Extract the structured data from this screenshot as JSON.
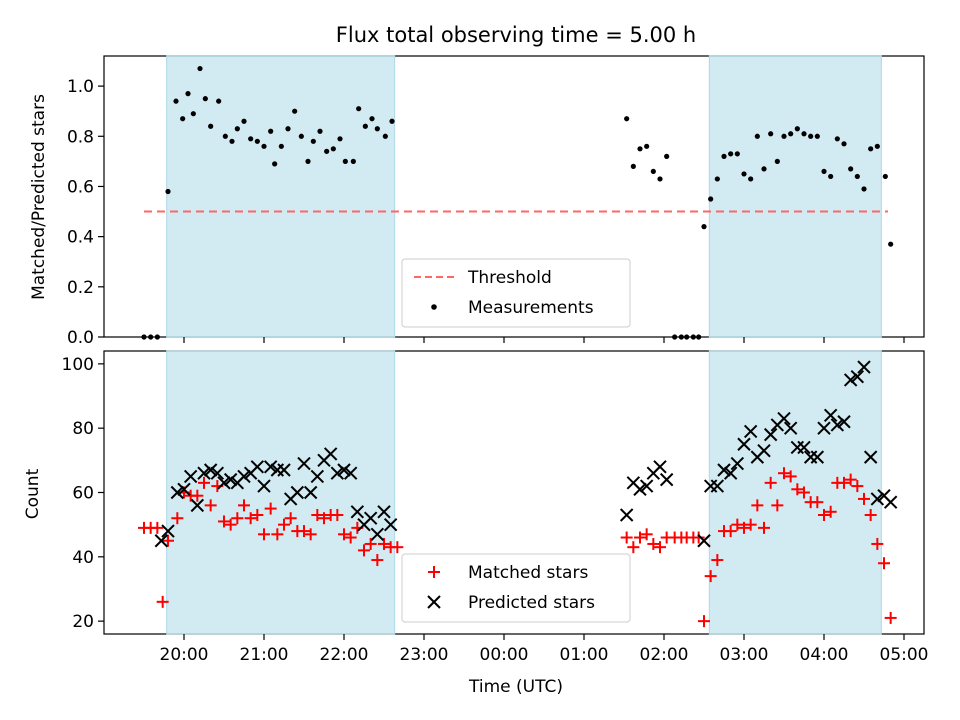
{
  "colors": {
    "band": "#add8e6",
    "threshold": "#ff6666",
    "matched": "#ff0000",
    "predicted": "#000000",
    "measurement": "#000000"
  },
  "chart_data": [
    {
      "type": "scatter",
      "title": "Flux total observing time = 5.00 h",
      "ylabel": "Matched/Predicted stars",
      "xlabel": "",
      "ylim": [
        0,
        1.12
      ],
      "yticks": [
        0.0,
        0.2,
        0.4,
        0.6,
        0.8,
        1.0
      ],
      "ytick_labels": [
        "0.0",
        "0.2",
        "0.4",
        "0.6",
        "0.8",
        "1.0"
      ],
      "grid": false,
      "legend_position": "lower center",
      "shaded_bands": [
        [
          "19:47",
          "22:38"
        ],
        [
          "02:34",
          "04:43"
        ]
      ],
      "threshold": {
        "name": "Threshold",
        "value": 0.5,
        "x_range": [
          "19:30",
          "04:48"
        ]
      },
      "series": [
        {
          "name": "Measurements",
          "marker": "dot",
          "points": [
            [
              "19:30",
              0.0
            ],
            [
              "19:35",
              0.0
            ],
            [
              "19:40",
              0.0
            ],
            [
              "19:48",
              0.58
            ],
            [
              "19:54",
              0.94
            ],
            [
              "19:59",
              0.87
            ],
            [
              "20:03",
              0.97
            ],
            [
              "20:07",
              0.89
            ],
            [
              "20:12",
              1.07
            ],
            [
              "20:16",
              0.95
            ],
            [
              "20:20",
              0.84
            ],
            [
              "20:26",
              0.94
            ],
            [
              "20:31",
              0.8
            ],
            [
              "20:36",
              0.78
            ],
            [
              "20:40",
              0.83
            ],
            [
              "20:45",
              0.86
            ],
            [
              "20:50",
              0.79
            ],
            [
              "20:55",
              0.78
            ],
            [
              "21:00",
              0.76
            ],
            [
              "21:05",
              0.82
            ],
            [
              "21:08",
              0.69
            ],
            [
              "21:13",
              0.76
            ],
            [
              "21:18",
              0.83
            ],
            [
              "21:23",
              0.9
            ],
            [
              "21:28",
              0.8
            ],
            [
              "21:33",
              0.7
            ],
            [
              "21:37",
              0.78
            ],
            [
              "21:42",
              0.82
            ],
            [
              "21:47",
              0.74
            ],
            [
              "21:52",
              0.75
            ],
            [
              "21:57",
              0.79
            ],
            [
              "22:01",
              0.7
            ],
            [
              "22:07",
              0.7
            ],
            [
              "22:11",
              0.91
            ],
            [
              "22:16",
              0.84
            ],
            [
              "22:21",
              0.87
            ],
            [
              "22:25",
              0.83
            ],
            [
              "22:31",
              0.8
            ],
            [
              "22:36",
              0.86
            ],
            [
              "01:32",
              0.87
            ],
            [
              "01:37",
              0.68
            ],
            [
              "01:42",
              0.75
            ],
            [
              "01:47",
              0.76
            ],
            [
              "01:52",
              0.66
            ],
            [
              "01:57",
              0.63
            ],
            [
              "02:02",
              0.72
            ],
            [
              "02:08",
              0.0
            ],
            [
              "02:13",
              0.0
            ],
            [
              "02:17",
              0.0
            ],
            [
              "02:22",
              0.0
            ],
            [
              "02:26",
              0.0
            ],
            [
              "02:30",
              0.44
            ],
            [
              "02:35",
              0.55
            ],
            [
              "02:40",
              0.63
            ],
            [
              "02:45",
              0.72
            ],
            [
              "02:50",
              0.73
            ],
            [
              "02:55",
              0.73
            ],
            [
              "03:00",
              0.65
            ],
            [
              "03:05",
              0.63
            ],
            [
              "03:10",
              0.8
            ],
            [
              "03:15",
              0.67
            ],
            [
              "03:20",
              0.81
            ],
            [
              "03:25",
              0.7
            ],
            [
              "03:30",
              0.8
            ],
            [
              "03:35",
              0.81
            ],
            [
              "03:40",
              0.83
            ],
            [
              "03:45",
              0.81
            ],
            [
              "03:50",
              0.8
            ],
            [
              "03:55",
              0.8
            ],
            [
              "04:00",
              0.66
            ],
            [
              "04:05",
              0.64
            ],
            [
              "04:10",
              0.79
            ],
            [
              "04:15",
              0.77
            ],
            [
              "04:20",
              0.67
            ],
            [
              "04:25",
              0.64
            ],
            [
              "04:30",
              0.59
            ],
            [
              "04:35",
              0.75
            ],
            [
              "04:40",
              0.76
            ],
            [
              "04:46",
              0.64
            ],
            [
              "04:50",
              0.37
            ]
          ]
        }
      ]
    },
    {
      "type": "scatter",
      "title": "",
      "xlabel": "Time (UTC)",
      "ylabel": "Count",
      "ylim": [
        16,
        104
      ],
      "yticks": [
        20,
        40,
        60,
        80,
        100
      ],
      "ytick_labels": [
        "20",
        "40",
        "60",
        "80",
        "100"
      ],
      "xticks": [
        "20:00",
        "21:00",
        "22:00",
        "23:00",
        "00:00",
        "01:00",
        "02:00",
        "03:00",
        "04:00",
        "05:00"
      ],
      "xlim": [
        "19:00",
        "05:15"
      ],
      "grid": false,
      "legend_position": "lower center",
      "shaded_bands": [
        [
          "19:47",
          "22:38"
        ],
        [
          "02:34",
          "04:43"
        ]
      ],
      "series": [
        {
          "name": "Matched stars",
          "marker": "plus",
          "points": [
            [
              "19:30",
              49
            ],
            [
              "19:35",
              49
            ],
            [
              "19:40",
              49
            ],
            [
              "19:44",
              26
            ],
            [
              "19:48",
              45
            ],
            [
              "19:55",
              52
            ],
            [
              "20:00",
              60
            ],
            [
              "20:05",
              59
            ],
            [
              "20:10",
              59
            ],
            [
              "20:15",
              63
            ],
            [
              "20:20",
              56
            ],
            [
              "20:25",
              62
            ],
            [
              "20:30",
              51
            ],
            [
              "20:35",
              50
            ],
            [
              "20:40",
              52
            ],
            [
              "20:45",
              56
            ],
            [
              "20:50",
              52
            ],
            [
              "20:55",
              53
            ],
            [
              "21:00",
              47
            ],
            [
              "21:05",
              55
            ],
            [
              "21:10",
              47
            ],
            [
              "21:15",
              50
            ],
            [
              "21:20",
              52
            ],
            [
              "21:25",
              48
            ],
            [
              "21:30",
              48
            ],
            [
              "21:35",
              47
            ],
            [
              "21:40",
              53
            ],
            [
              "21:45",
              52
            ],
            [
              "21:50",
              53
            ],
            [
              "21:55",
              53
            ],
            [
              "22:00",
              47
            ],
            [
              "22:05",
              46
            ],
            [
              "22:10",
              49
            ],
            [
              "22:15",
              42
            ],
            [
              "22:20",
              44
            ],
            [
              "22:25",
              39
            ],
            [
              "22:30",
              44
            ],
            [
              "22:35",
              43
            ],
            [
              "22:40",
              43
            ],
            [
              "01:32",
              46
            ],
            [
              "01:37",
              43
            ],
            [
              "01:42",
              46
            ],
            [
              "01:47",
              47
            ],
            [
              "01:52",
              44
            ],
            [
              "01:57",
              43
            ],
            [
              "02:02",
              46
            ],
            [
              "02:08",
              46
            ],
            [
              "02:13",
              46
            ],
            [
              "02:17",
              46
            ],
            [
              "02:22",
              46
            ],
            [
              "02:26",
              46
            ],
            [
              "02:30",
              20
            ],
            [
              "02:35",
              34
            ],
            [
              "02:40",
              39
            ],
            [
              "02:45",
              48
            ],
            [
              "02:50",
              48
            ],
            [
              "02:55",
              50
            ],
            [
              "03:00",
              49
            ],
            [
              "03:05",
              50
            ],
            [
              "03:10",
              56
            ],
            [
              "03:15",
              49
            ],
            [
              "03:20",
              63
            ],
            [
              "03:25",
              56
            ],
            [
              "03:30",
              66
            ],
            [
              "03:35",
              65
            ],
            [
              "03:40",
              61
            ],
            [
              "03:45",
              60
            ],
            [
              "03:50",
              57
            ],
            [
              "03:55",
              57
            ],
            [
              "04:00",
              53
            ],
            [
              "04:05",
              54
            ],
            [
              "04:10",
              63
            ],
            [
              "04:15",
              63
            ],
            [
              "04:20",
              64
            ],
            [
              "04:25",
              62
            ],
            [
              "04:30",
              58
            ],
            [
              "04:35",
              53
            ],
            [
              "04:40",
              44
            ],
            [
              "04:45",
              38
            ],
            [
              "04:50",
              21
            ]
          ]
        },
        {
          "name": "Predicted stars",
          "marker": "x",
          "points": [
            [
              "19:43",
              45
            ],
            [
              "19:48",
              48
            ],
            [
              "19:55",
              60
            ],
            [
              "20:00",
              61
            ],
            [
              "20:05",
              65
            ],
            [
              "20:10",
              56
            ],
            [
              "20:15",
              66
            ],
            [
              "20:20",
              67
            ],
            [
              "20:25",
              66
            ],
            [
              "20:30",
              63
            ],
            [
              "20:35",
              64
            ],
            [
              "20:40",
              63
            ],
            [
              "20:45",
              65
            ],
            [
              "20:50",
              66
            ],
            [
              "20:55",
              68
            ],
            [
              "21:00",
              62
            ],
            [
              "21:05",
              68
            ],
            [
              "21:10",
              67
            ],
            [
              "21:15",
              67
            ],
            [
              "21:20",
              58
            ],
            [
              "21:25",
              60
            ],
            [
              "21:30",
              69
            ],
            [
              "21:35",
              60
            ],
            [
              "21:40",
              65
            ],
            [
              "21:45",
              70
            ],
            [
              "21:50",
              72
            ],
            [
              "21:55",
              66
            ],
            [
              "22:00",
              67
            ],
            [
              "22:05",
              66
            ],
            [
              "22:10",
              54
            ],
            [
              "22:15",
              50
            ],
            [
              "22:20",
              52
            ],
            [
              "22:25",
              47
            ],
            [
              "22:30",
              54
            ],
            [
              "22:35",
              50
            ],
            [
              "01:32",
              53
            ],
            [
              "01:37",
              63
            ],
            [
              "01:42",
              61
            ],
            [
              "01:47",
              62
            ],
            [
              "01:52",
              66
            ],
            [
              "01:57",
              68
            ],
            [
              "02:02",
              64
            ],
            [
              "02:30",
              45
            ],
            [
              "02:35",
              62
            ],
            [
              "02:40",
              62
            ],
            [
              "02:45",
              67
            ],
            [
              "02:50",
              66
            ],
            [
              "02:55",
              69
            ],
            [
              "03:00",
              75
            ],
            [
              "03:05",
              79
            ],
            [
              "03:10",
              71
            ],
            [
              "03:15",
              73
            ],
            [
              "03:20",
              78
            ],
            [
              "03:25",
              81
            ],
            [
              "03:30",
              83
            ],
            [
              "03:35",
              80
            ],
            [
              "03:40",
              74
            ],
            [
              "03:45",
              74
            ],
            [
              "03:50",
              71
            ],
            [
              "03:55",
              71
            ],
            [
              "04:00",
              80
            ],
            [
              "04:05",
              84
            ],
            [
              "04:10",
              81
            ],
            [
              "04:15",
              82
            ],
            [
              "04:20",
              95
            ],
            [
              "04:25",
              96
            ],
            [
              "04:30",
              99
            ],
            [
              "04:35",
              71
            ],
            [
              "04:40",
              58
            ],
            [
              "04:45",
              59
            ],
            [
              "04:50",
              57
            ]
          ]
        }
      ]
    }
  ]
}
